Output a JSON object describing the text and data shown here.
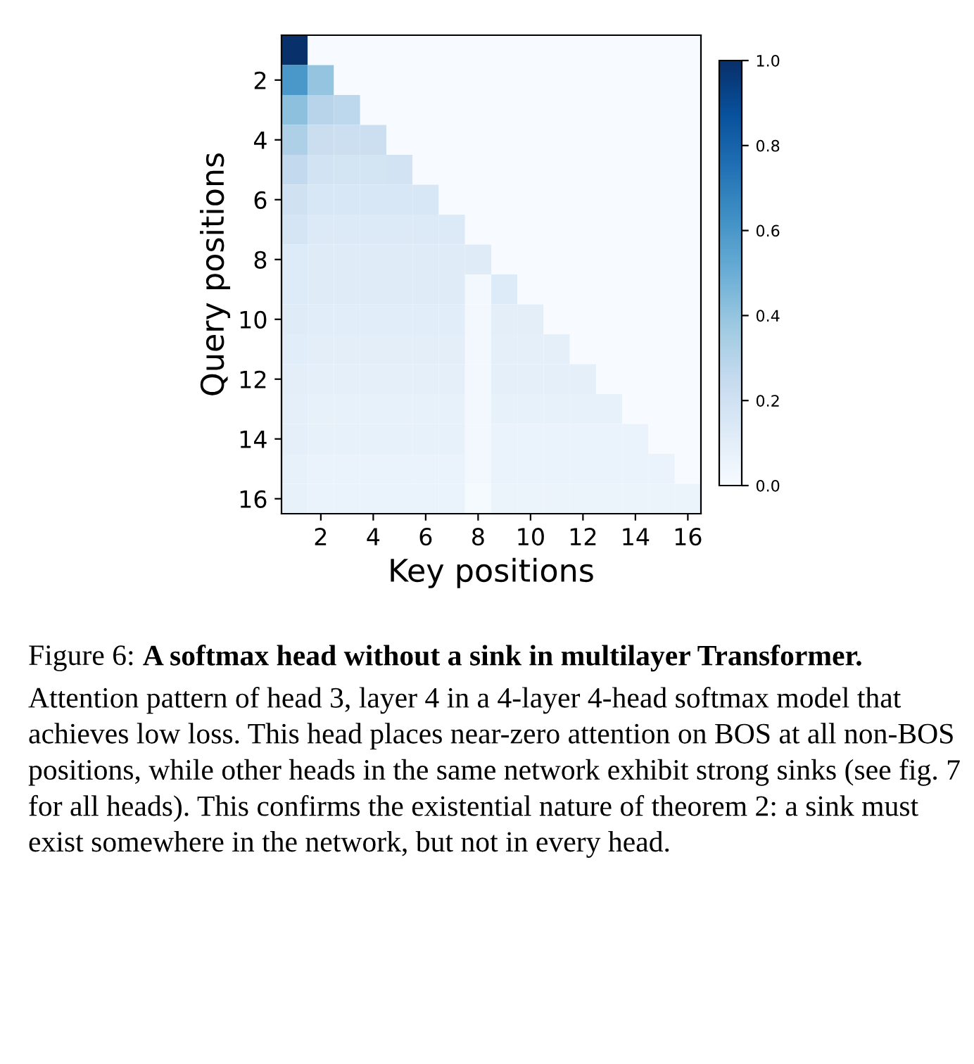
{
  "chart_data": {
    "type": "heatmap",
    "xlabel": "Key positions",
    "ylabel": "Query positions",
    "categories": [
      null,
      "2",
      null,
      "4",
      null,
      "6",
      null,
      "8",
      null,
      "10",
      null,
      "12",
      null,
      "14",
      null,
      "16"
    ],
    "y_categories": [
      null,
      "2",
      null,
      "4",
      null,
      "6",
      null,
      "8",
      null,
      "10",
      null,
      "12",
      null,
      "14",
      null,
      "16"
    ],
    "cells": [
      [
        1.0,
        0,
        0,
        0,
        0,
        0,
        0,
        0,
        0,
        0,
        0,
        0,
        0,
        0,
        0,
        0
      ],
      [
        0.6,
        0.4,
        0,
        0,
        0,
        0,
        0,
        0,
        0,
        0,
        0,
        0,
        0,
        0,
        0,
        0
      ],
      [
        0.42,
        0.3,
        0.28,
        0,
        0,
        0,
        0,
        0,
        0,
        0,
        0,
        0,
        0,
        0,
        0,
        0
      ],
      [
        0.33,
        0.23,
        0.22,
        0.22,
        0,
        0,
        0,
        0,
        0,
        0,
        0,
        0,
        0,
        0,
        0,
        0
      ],
      [
        0.26,
        0.19,
        0.18,
        0.18,
        0.19,
        0,
        0,
        0,
        0,
        0,
        0,
        0,
        0,
        0,
        0,
        0
      ],
      [
        0.2,
        0.16,
        0.16,
        0.16,
        0.16,
        0.16,
        0,
        0,
        0,
        0,
        0,
        0,
        0,
        0,
        0,
        0
      ],
      [
        0.17,
        0.14,
        0.14,
        0.14,
        0.14,
        0.14,
        0.14,
        0,
        0,
        0,
        0,
        0,
        0,
        0,
        0,
        0
      ],
      [
        0.13,
        0.12,
        0.12,
        0.12,
        0.12,
        0.12,
        0.12,
        0.12,
        0,
        0,
        0,
        0,
        0,
        0,
        0,
        0
      ],
      [
        0.13,
        0.12,
        0.12,
        0.12,
        0.12,
        0.12,
        0.12,
        0.02,
        0.13,
        0,
        0,
        0,
        0,
        0,
        0,
        0
      ],
      [
        0.12,
        0.11,
        0.11,
        0.11,
        0.11,
        0.11,
        0.11,
        0.02,
        0.1,
        0.1,
        0,
        0,
        0,
        0,
        0,
        0
      ],
      [
        0.11,
        0.1,
        0.1,
        0.1,
        0.1,
        0.1,
        0.1,
        0.02,
        0.09,
        0.09,
        0.09,
        0,
        0,
        0,
        0,
        0
      ],
      [
        0.1,
        0.09,
        0.09,
        0.09,
        0.09,
        0.09,
        0.09,
        0.02,
        0.09,
        0.09,
        0.09,
        0.09,
        0,
        0,
        0,
        0
      ],
      [
        0.09,
        0.08,
        0.08,
        0.08,
        0.08,
        0.08,
        0.08,
        0.02,
        0.08,
        0.08,
        0.08,
        0.08,
        0.08,
        0,
        0,
        0
      ],
      [
        0.09,
        0.08,
        0.08,
        0.08,
        0.08,
        0.08,
        0.08,
        0.02,
        0.07,
        0.07,
        0.07,
        0.07,
        0.07,
        0.07,
        0,
        0
      ],
      [
        0.08,
        0.07,
        0.07,
        0.07,
        0.07,
        0.07,
        0.07,
        0.02,
        0.07,
        0.07,
        0.07,
        0.07,
        0.07,
        0.07,
        0.07,
        0
      ],
      [
        0.08,
        0.07,
        0.07,
        0.07,
        0.07,
        0.07,
        0.07,
        0.01,
        0.06,
        0.06,
        0.06,
        0.06,
        0.06,
        0.06,
        0.06,
        0.06
      ]
    ],
    "clim": [
      0,
      1
    ],
    "cticks": [
      {
        "value": 0,
        "label": "0.0"
      },
      0.2,
      0.4,
      0.6,
      0.8,
      {
        "value": 1,
        "label": "1.0"
      }
    ],
    "annotations": [
      "Figure 6:",
      "A softmax head without a sink in multilayer Transformer.",
      "Attention pattern of head 3, layer 4 in a 4-layer 4-head softmax model that achieves low loss. This head places near-zero attention on BOS at all non-BOS positions, while other heads in the same network exhibit strong sinks (see fig. 7 for all heads). This confirms the existential nature of theorem 2: a sink must exist somewhere in the network, but not in every head."
    ]
  }
}
